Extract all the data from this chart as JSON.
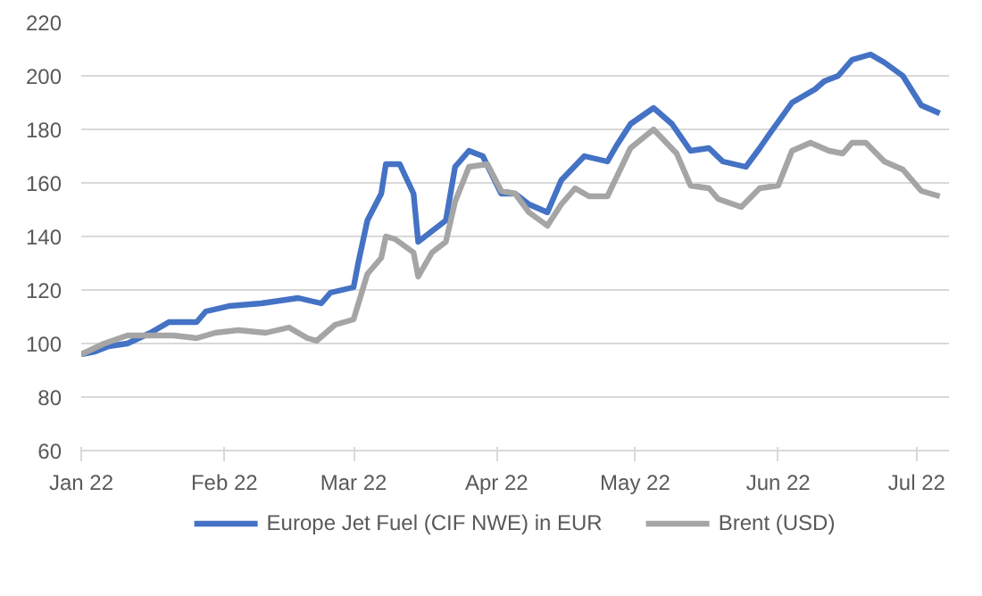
{
  "chart_data": {
    "type": "line",
    "xlim": [
      "2022-01-01",
      "2022-07-08"
    ],
    "ylim": [
      60,
      220
    ],
    "xticks": [
      {
        "value": "2022-01-01",
        "label": "Jan 22"
      },
      {
        "value": "2022-02-01",
        "label": "Feb 22"
      },
      {
        "value": "2022-03-01",
        "label": "Mar 22"
      },
      {
        "value": "2022-04-01",
        "label": "Apr 22"
      },
      {
        "value": "2022-05-01",
        "label": "May 22"
      },
      {
        "value": "2022-06-01",
        "label": "Jun 22"
      },
      {
        "value": "2022-07-01",
        "label": "Jul 22"
      }
    ],
    "yticks": [
      60,
      80,
      100,
      120,
      140,
      160,
      180,
      200,
      220
    ],
    "grid": "y",
    "legend": "bottom",
    "marker": "none",
    "line_style": "solid",
    "series": [
      {
        "name": "Europe Jet Fuel (CIF NWE) in EUR",
        "color": "#4472c4",
        "x": [
          "2022-01-01",
          "2022-01-04",
          "2022-01-07",
          "2022-01-11",
          "2022-01-16",
          "2022-01-20",
          "2022-01-26",
          "2022-01-28",
          "2022-02-02",
          "2022-02-09",
          "2022-02-17",
          "2022-02-22",
          "2022-02-24",
          "2022-03-01",
          "2022-03-02",
          "2022-03-04",
          "2022-03-07",
          "2022-03-08",
          "2022-03-11",
          "2022-03-14",
          "2022-03-15",
          "2022-03-21",
          "2022-03-23",
          "2022-03-26",
          "2022-03-29",
          "2022-04-02",
          "2022-04-05",
          "2022-04-08",
          "2022-04-12",
          "2022-04-15",
          "2022-04-20",
          "2022-04-25",
          "2022-04-27",
          "2022-04-30",
          "2022-05-05",
          "2022-05-09",
          "2022-05-13",
          "2022-05-17",
          "2022-05-20",
          "2022-05-25",
          "2022-05-28",
          "2022-05-30",
          "2022-06-04",
          "2022-06-09",
          "2022-06-11",
          "2022-06-14",
          "2022-06-17",
          "2022-06-21",
          "2022-06-24",
          "2022-06-28",
          "2022-07-02",
          "2022-07-06"
        ],
        "values": [
          96,
          97,
          99,
          100,
          104,
          108,
          108,
          112,
          114,
          115,
          117,
          115,
          119,
          121,
          130,
          146,
          156,
          167,
          167,
          156,
          138,
          146,
          166,
          172,
          170,
          156,
          156,
          152,
          149,
          161,
          170,
          168,
          174,
          182,
          188,
          182,
          172,
          173,
          168,
          166,
          173,
          178,
          190,
          195,
          198,
          200,
          206,
          208,
          205,
          200,
          189,
          186
        ]
      },
      {
        "name": "Brent (USD)",
        "color": "#a5a5a5",
        "x": [
          "2022-01-01",
          "2022-01-06",
          "2022-01-11",
          "2022-01-16",
          "2022-01-21",
          "2022-01-26",
          "2022-01-30",
          "2022-02-04",
          "2022-02-10",
          "2022-02-15",
          "2022-02-19",
          "2022-02-21",
          "2022-02-25",
          "2022-03-01",
          "2022-03-04",
          "2022-03-07",
          "2022-03-08",
          "2022-03-10",
          "2022-03-14",
          "2022-03-15",
          "2022-03-18",
          "2022-03-21",
          "2022-03-23",
          "2022-03-26",
          "2022-03-30",
          "2022-04-02",
          "2022-04-05",
          "2022-04-08",
          "2022-04-12",
          "2022-04-15",
          "2022-04-18",
          "2022-04-21",
          "2022-04-25",
          "2022-04-30",
          "2022-05-05",
          "2022-05-10",
          "2022-05-13",
          "2022-05-17",
          "2022-05-19",
          "2022-05-24",
          "2022-05-28",
          "2022-06-01",
          "2022-06-04",
          "2022-06-08",
          "2022-06-12",
          "2022-06-15",
          "2022-06-17",
          "2022-06-20",
          "2022-06-24",
          "2022-06-28",
          "2022-07-02",
          "2022-07-06"
        ],
        "values": [
          96,
          100,
          103,
          103,
          103,
          102,
          104,
          105,
          104,
          106,
          102,
          101,
          107,
          109,
          126,
          132,
          140,
          139,
          134,
          125,
          134,
          138,
          153,
          166,
          167,
          157,
          156,
          149,
          144,
          152,
          158,
          155,
          155,
          173,
          180,
          171,
          159,
          158,
          154,
          151,
          158,
          159,
          172,
          175,
          172,
          171,
          175,
          175,
          168,
          165,
          157,
          155
        ]
      }
    ]
  }
}
